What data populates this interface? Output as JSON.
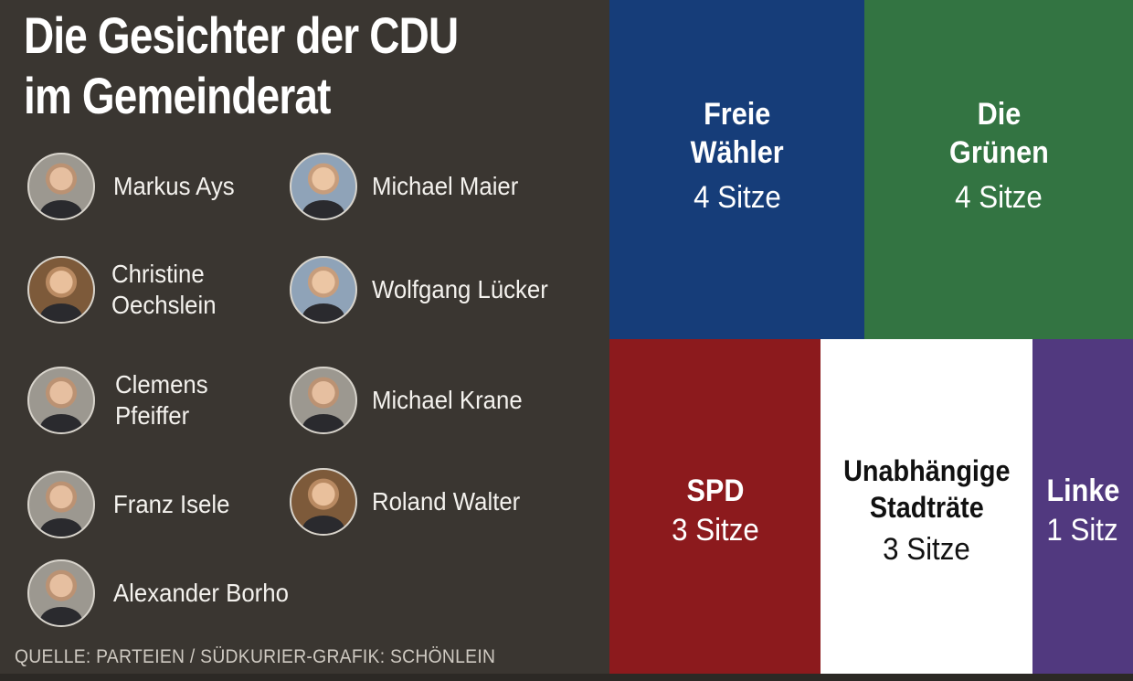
{
  "title_lines": [
    "Die Gesichter der CDU",
    "im Gemeinderat"
  ],
  "members": [
    {
      "name_lines": [
        "Markus Ays"
      ]
    },
    {
      "name_lines": [
        "Michael Maier"
      ]
    },
    {
      "name_lines": [
        "Christine",
        "Oechslein"
      ]
    },
    {
      "name_lines": [
        "Wolfgang Lücker"
      ]
    },
    {
      "name_lines": [
        "Clemens",
        "Pfeiffer"
      ]
    },
    {
      "name_lines": [
        "Michael Krane"
      ]
    },
    {
      "name_lines": [
        "Franz Isele"
      ]
    },
    {
      "name_lines": [
        "Roland Walter"
      ]
    },
    {
      "name_lines": [
        "Alexander Borho"
      ]
    }
  ],
  "source": "QUELLE: PARTEIEN / SÜDKURIER-GRAFIK: SCHÖNLEIN",
  "parties": [
    {
      "name_lines": [
        "Freie",
        "Wähler"
      ],
      "seats": "4 Sitze",
      "color": "#163d79",
      "text_color": "#ffffff"
    },
    {
      "name_lines": [
        "Die",
        "Grünen"
      ],
      "seats": "4 Sitze",
      "color": "#337442",
      "text_color": "#ffffff"
    },
    {
      "name_lines": [
        "SPD"
      ],
      "seats": "3 Sitze",
      "color": "#8c1a1d",
      "text_color": "#ffffff"
    },
    {
      "name_lines": [
        "Unabhängige",
        "Stadträte"
      ],
      "seats": "3 Sitze",
      "color": "#ffffff",
      "text_color": "#111111"
    },
    {
      "name_lines": [
        "Linke"
      ],
      "seats": "1 Sitz",
      "color": "#51397f",
      "text_color": "#ffffff"
    }
  ]
}
